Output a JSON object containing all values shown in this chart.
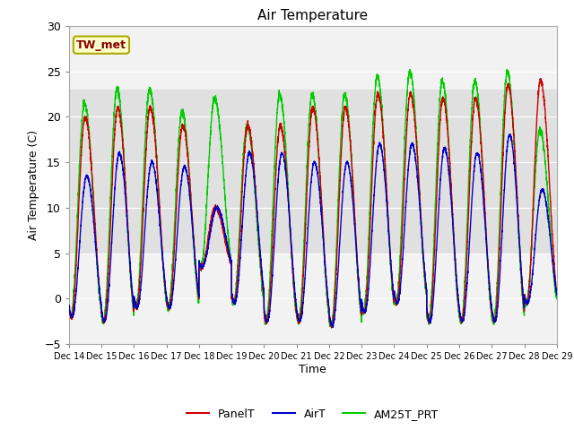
{
  "title": "Air Temperature",
  "ylabel": "Air Temperature (C)",
  "xlabel": "Time",
  "annotation": "TW_met",
  "ylim": [
    -5,
    30
  ],
  "xlim_days": [
    0,
    15
  ],
  "xtick_labels": [
    "Dec 14",
    "Dec 15",
    "Dec 16",
    "Dec 17",
    "Dec 18",
    "Dec 19",
    "Dec 20",
    "Dec 21",
    "Dec 22",
    "Dec 23",
    "Dec 24",
    "Dec 25",
    "Dec 26",
    "Dec 27",
    "Dec 28",
    "Dec 29"
  ],
  "ytick_values": [
    -5,
    0,
    5,
    10,
    15,
    20,
    25,
    30
  ],
  "hband_low": 5,
  "hband_high": 23,
  "hband_color": "#e0e0e0",
  "bg_color": "#f2f2f2",
  "line_colors": {
    "PanelT": "#cc0000",
    "AirT": "#0000cc",
    "AM25T_PRT": "#00cc00"
  },
  "legend_labels": [
    "PanelT",
    "AirT",
    "AM25T_PRT"
  ],
  "annotation_box_color": "#ffffcc",
  "annotation_text_color": "#880000",
  "annotation_border_color": "#aaaa00",
  "day_min": [
    -2.0,
    -2.5,
    -1.0,
    -1.0,
    3.5,
    -0.5,
    -2.5,
    -2.5,
    -3.0,
    -1.5,
    -0.5,
    -2.5,
    -2.5,
    -2.5,
    -0.5
  ],
  "day_max_panel": [
    20.0,
    21.0,
    21.0,
    19.0,
    10.0,
    19.0,
    19.0,
    21.0,
    21.0,
    22.5,
    22.5,
    22.0,
    22.0,
    23.5,
    24.0
  ],
  "day_max_air": [
    13.5,
    16.0,
    15.0,
    14.5,
    10.0,
    16.0,
    16.0,
    15.0,
    15.0,
    17.0,
    17.0,
    16.5,
    16.0,
    18.0,
    12.0
  ],
  "day_max_am25": [
    21.5,
    23.0,
    23.0,
    20.5,
    22.0,
    19.0,
    22.5,
    22.5,
    22.5,
    24.5,
    25.0,
    24.0,
    24.0,
    25.0,
    18.5
  ],
  "points_per_day": 288,
  "peak_time": 0.45,
  "min_time": 0.1
}
